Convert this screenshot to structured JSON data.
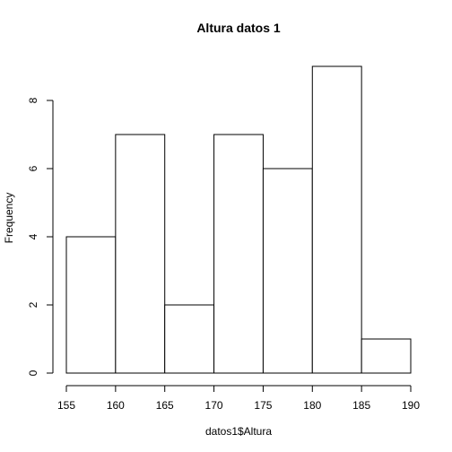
{
  "chart_data": {
    "type": "bar",
    "title": "Altura datos 1",
    "xlabel": "datos1$Altura",
    "ylabel": "Frequency",
    "bins": [
      {
        "from": 155,
        "to": 160,
        "count": 4
      },
      {
        "from": 160,
        "to": 165,
        "count": 7
      },
      {
        "from": 165,
        "to": 170,
        "count": 2
      },
      {
        "from": 170,
        "to": 175,
        "count": 7
      },
      {
        "from": 175,
        "to": 180,
        "count": 6
      },
      {
        "from": 180,
        "to": 185,
        "count": 9
      },
      {
        "from": 185,
        "to": 190,
        "count": 1
      }
    ],
    "x_ticks": [
      "155",
      "160",
      "165",
      "170",
      "175",
      "180",
      "185",
      "190"
    ],
    "y_ticks": [
      "0",
      "2",
      "4",
      "6",
      "8"
    ],
    "xlim": [
      155,
      190
    ],
    "ylim": [
      0,
      9
    ],
    "bar_fill": "#ffffff",
    "bar_stroke": "#000000",
    "grid": false
  }
}
